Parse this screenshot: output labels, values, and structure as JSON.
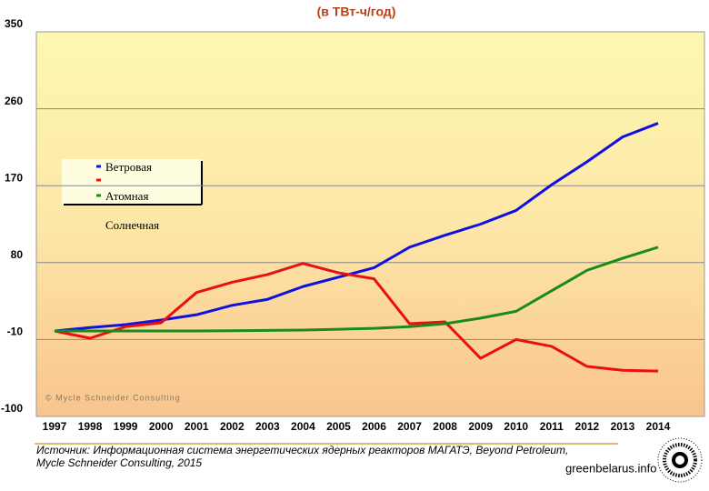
{
  "chart_data": {
    "type": "line",
    "subtitle": "(в ТВт-ч/год)",
    "categories": [
      "1997",
      "1998",
      "1999",
      "2000",
      "2001",
      "2002",
      "2003",
      "2004",
      "2005",
      "2006",
      "2007",
      "2008",
      "2009",
      "2010",
      "2011",
      "2012",
      "2013",
      "2014"
    ],
    "series": [
      {
        "name": "Ветровая",
        "color": "#1010e0",
        "values": [
          0,
          4,
          7.4,
          12.8,
          19,
          30,
          37,
          52,
          63,
          74,
          98,
          112,
          125,
          141,
          171,
          198,
          227,
          243
        ]
      },
      {
        "name": null,
        "color": "#e81010",
        "values": [
          0,
          -8.5,
          5,
          9.6,
          45,
          57,
          66,
          79,
          68,
          61,
          8.5,
          10.6,
          -32,
          -10,
          -18,
          -41.5,
          -46,
          -47
        ]
      },
      {
        "name": "Атомная",
        "color": "#1a8a1a",
        "values": [
          0,
          0,
          0,
          0,
          0,
          0.3,
          0.6,
          1,
          2,
          3,
          5,
          8.5,
          15,
          23,
          47,
          71,
          85,
          98
        ]
      }
    ],
    "legend_note": "Солнечная",
    "ylim": [
      -100,
      350
    ],
    "yticks": [
      -100,
      -10,
      80,
      170,
      260,
      350
    ],
    "grid": true,
    "watermark": "© Mycle Schneider Consulting",
    "source": "Источник: Информационная система энергетических ядерных реакторов МАГАТЭ, Beyond Petroleum, Mycle Schneider Consulting, 2015",
    "site": "greenbelarus.info"
  }
}
